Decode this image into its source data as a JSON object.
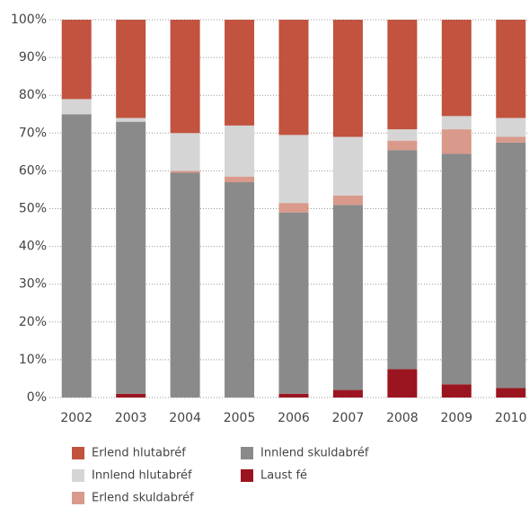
{
  "chart_data": {
    "type": "stacked_bar_100",
    "categories": [
      "2002",
      "2003",
      "2004",
      "2005",
      "2006",
      "2007",
      "2008",
      "2009",
      "2010"
    ],
    "series": [
      {
        "name": "Laust fé",
        "color": "#9b1520",
        "values": [
          0,
          1,
          0,
          0,
          1,
          2,
          7.5,
          3.5,
          2.5
        ]
      },
      {
        "name": "Innlend skuldabréf",
        "color": "#8a8a8a",
        "values": [
          75,
          72,
          59.5,
          57,
          48,
          49,
          58,
          61,
          65
        ]
      },
      {
        "name": "Erlend skuldabréf",
        "color": "#d9998b",
        "values": [
          0,
          0,
          0.5,
          1.5,
          2.5,
          2.5,
          2.5,
          6.5,
          1.5
        ]
      },
      {
        "name": "Innlend hlutabréf",
        "color": "#d5d5d5",
        "values": [
          4,
          1,
          10,
          13.5,
          18,
          15.5,
          3,
          3.5,
          5
        ]
      },
      {
        "name": "Erlend hlutabréf",
        "color": "#c1533f",
        "values": [
          21,
          26,
          30,
          28,
          30.5,
          31,
          29,
          25.5,
          26
        ]
      }
    ],
    "ylim": [
      0,
      100
    ],
    "yticks": [
      {
        "value": 0,
        "label": "0%"
      },
      {
        "value": 10,
        "label": "10%"
      },
      {
        "value": 20,
        "label": "20%"
      },
      {
        "value": 30,
        "label": "30%"
      },
      {
        "value": 40,
        "label": "40%"
      },
      {
        "value": 50,
        "label": "50%"
      },
      {
        "value": 60,
        "label": "60%"
      },
      {
        "value": 70,
        "label": "70%"
      },
      {
        "value": 80,
        "label": "80%"
      },
      {
        "value": 90,
        "label": "90%"
      },
      {
        "value": 100,
        "label": "100%"
      }
    ],
    "grid": true
  }
}
